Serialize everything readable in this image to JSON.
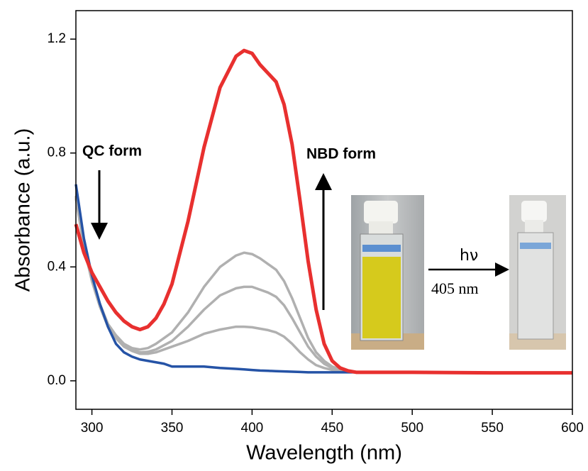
{
  "chart_data": {
    "type": "line",
    "x_label": "Wavelength (nm)",
    "y_label": "Absorbance (a.u.)",
    "annotations": [
      "QC form",
      "NBD form",
      "hν",
      "405 nm"
    ],
    "xlim": [
      290,
      600
    ],
    "xticks": [
      300,
      350,
      400,
      450,
      500,
      550,
      600
    ],
    "ylim": [
      -0.1,
      1.3
    ],
    "yticks": [
      {
        "value": 0,
        "label": "0.0"
      },
      0.4,
      0.8,
      1.2
    ],
    "x": [
      290,
      295,
      300,
      305,
      310,
      315,
      320,
      325,
      330,
      335,
      340,
      345,
      350,
      360,
      370,
      380,
      390,
      395,
      400,
      405,
      410,
      415,
      420,
      425,
      430,
      435,
      440,
      445,
      450,
      455,
      460,
      465,
      470,
      480,
      500,
      550,
      600
    ],
    "series": [
      {
        "color": "#b0b0b0",
        "values": [
          0.64,
          0.47,
          0.35,
          0.26,
          0.19,
          0.15,
          0.12,
          0.105,
          0.095,
          0.095,
          0.1,
          0.11,
          0.12,
          0.14,
          0.165,
          0.18,
          0.19,
          0.19,
          0.188,
          0.183,
          0.178,
          0.17,
          0.155,
          0.13,
          0.1,
          0.075,
          0.055,
          0.045,
          0.038,
          0.034,
          0.032,
          0.03,
          0.03,
          0.03,
          0.03,
          0.028,
          0.028
        ]
      },
      {
        "color": "#b0b0b0",
        "values": [
          0.645,
          0.475,
          0.355,
          0.265,
          0.195,
          0.155,
          0.125,
          0.11,
          0.1,
          0.102,
          0.11,
          0.125,
          0.14,
          0.19,
          0.25,
          0.3,
          0.325,
          0.33,
          0.33,
          0.32,
          0.31,
          0.295,
          0.265,
          0.22,
          0.17,
          0.12,
          0.085,
          0.06,
          0.045,
          0.037,
          0.033,
          0.03,
          0.03,
          0.03,
          0.03,
          0.028,
          0.028
        ]
      },
      {
        "color": "#b0b0b0",
        "values": [
          0.65,
          0.48,
          0.36,
          0.27,
          0.2,
          0.16,
          0.13,
          0.115,
          0.11,
          0.115,
          0.13,
          0.15,
          0.17,
          0.24,
          0.33,
          0.4,
          0.44,
          0.45,
          0.445,
          0.43,
          0.41,
          0.39,
          0.35,
          0.29,
          0.22,
          0.15,
          0.1,
          0.07,
          0.05,
          0.04,
          0.035,
          0.03,
          0.03,
          0.03,
          0.03,
          0.028,
          0.028
        ]
      },
      {
        "color": "#2553a6",
        "values": [
          0.69,
          0.5,
          0.37,
          0.27,
          0.19,
          0.13,
          0.1,
          0.085,
          0.075,
          0.07,
          0.065,
          0.06,
          0.05,
          0.05,
          0.05,
          0.045,
          0.042,
          0.04,
          0.038,
          0.036,
          0.035,
          0.034,
          0.033,
          0.032,
          0.031,
          0.03,
          0.03,
          0.03,
          0.03,
          0.03,
          0.03,
          0.03,
          0.03,
          0.03,
          0.03,
          0.028,
          0.028
        ]
      },
      {
        "color": "#e8302f",
        "values": [
          0.55,
          0.45,
          0.38,
          0.33,
          0.28,
          0.24,
          0.21,
          0.19,
          0.18,
          0.19,
          0.22,
          0.27,
          0.34,
          0.56,
          0.82,
          1.03,
          1.14,
          1.16,
          1.15,
          1.11,
          1.08,
          1.05,
          0.97,
          0.83,
          0.63,
          0.42,
          0.25,
          0.13,
          0.07,
          0.045,
          0.035,
          0.03,
          0.03,
          0.03,
          0.03,
          0.028,
          0.028
        ]
      }
    ]
  }
}
